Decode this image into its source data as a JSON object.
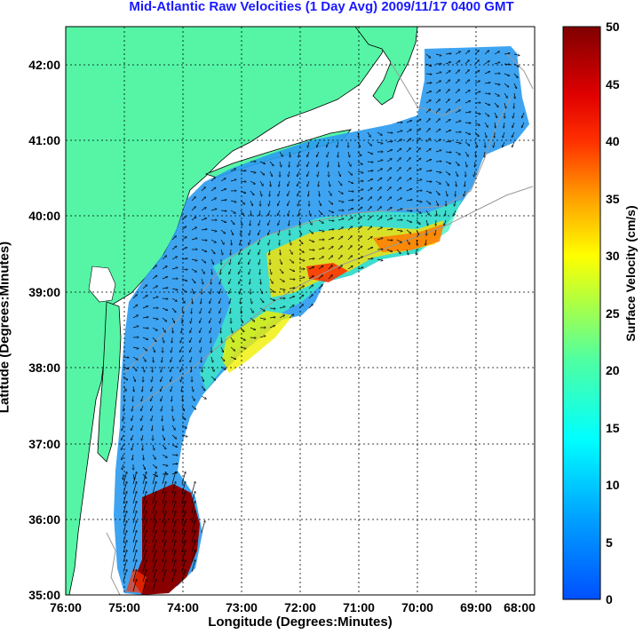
{
  "title": "Mid-Atlantic Raw Velocities (1 Day Avg) 2009/11/17 0400 GMT",
  "xlabel": "Longitude (Degrees:Minutes)",
  "ylabel": "Latitude (Degrees:Minutes)",
  "colorbar": {
    "label": "Surface Velocity (cm/s)",
    "ticks": [
      "0",
      "5",
      "10",
      "15",
      "20",
      "25",
      "30",
      "35",
      "40",
      "45",
      "50"
    ],
    "range": [
      0,
      50
    ]
  },
  "map": {
    "x_ticks": [
      "76:00",
      "75:00",
      "74:00",
      "73:00",
      "72:00",
      "71:00",
      "70:00",
      "69:00",
      "68:00"
    ],
    "y_ticks": [
      "35:00",
      "36:00",
      "37:00",
      "38:00",
      "39:00",
      "40:00",
      "41:00",
      "42:00"
    ],
    "lon_range": [
      -76,
      -68
    ],
    "lat_range": [
      35,
      42.5
    ],
    "land_color": "#55f5a5",
    "grid": true
  }
}
